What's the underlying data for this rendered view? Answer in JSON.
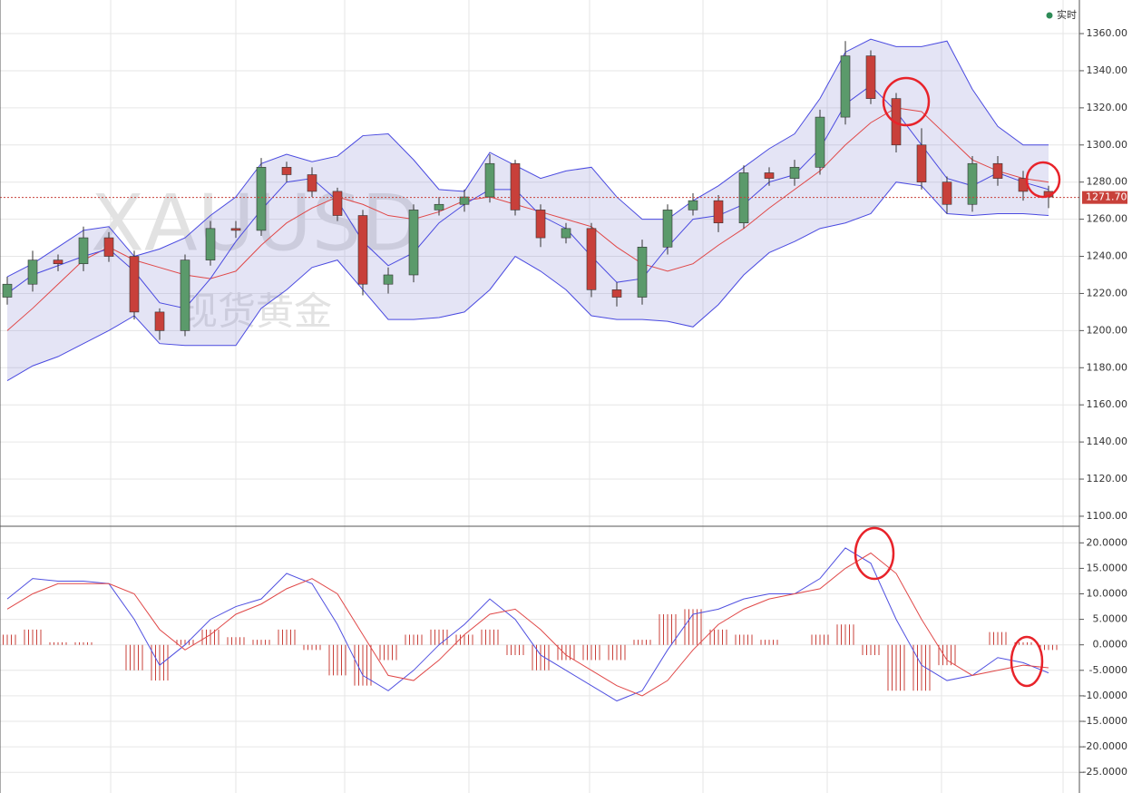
{
  "mode_label": "实时",
  "watermark": "XAUUSD",
  "watermark_sub": "现货黄金",
  "chart_data": [
    {
      "type": "candlestick",
      "ylim": [
        1094.6,
        1378.1
      ],
      "yticks": [
        {
          "value": 1100,
          "label": "1100.00"
        },
        {
          "value": 1120,
          "label": "1120.00"
        },
        {
          "value": 1140,
          "label": "1140.00"
        },
        {
          "value": 1160,
          "label": "1160.00"
        },
        {
          "value": 1180,
          "label": "1180.00"
        },
        {
          "value": 1200,
          "label": "1200.00"
        },
        {
          "value": 1220,
          "label": "1220.00"
        },
        {
          "value": 1240,
          "label": "1240.00"
        },
        {
          "value": 1260,
          "label": "1260.00"
        },
        {
          "value": 1280,
          "label": "1280.00"
        },
        {
          "value": 1300,
          "label": "1300.00"
        },
        {
          "value": 1320,
          "label": "1320.00"
        },
        {
          "value": 1340,
          "label": "1340.00"
        },
        {
          "value": 1360,
          "label": "1360.00"
        }
      ],
      "last_price": {
        "value": 1271.7,
        "label": "1271.70"
      },
      "up_color": "#5b9a6b",
      "down_color": "#c8403a",
      "open": [
        1218,
        1225,
        1238,
        1236,
        1250,
        1240,
        1210,
        1200,
        1238,
        1255,
        1254,
        1288,
        1284,
        1275,
        1262,
        1225,
        1230,
        1265,
        1268,
        1272,
        1290,
        1265,
        1250,
        1255,
        1222,
        1218,
        1245,
        1265,
        1270,
        1258,
        1285,
        1282,
        1288,
        1315,
        1348,
        1325,
        1300,
        1280,
        1268,
        1290,
        1282,
        1275
      ],
      "close": [
        1225,
        1238,
        1236,
        1250,
        1240,
        1210,
        1200,
        1238,
        1255,
        1254,
        1288,
        1284,
        1275,
        1262,
        1225,
        1230,
        1265,
        1268,
        1272,
        1290,
        1265,
        1250,
        1255,
        1222,
        1218,
        1245,
        1265,
        1270,
        1258,
        1285,
        1282,
        1288,
        1315,
        1348,
        1325,
        1300,
        1280,
        1268,
        1290,
        1282,
        1275,
        1272
      ],
      "high": [
        1229,
        1243,
        1241,
        1256,
        1253,
        1243,
        1212,
        1241,
        1259,
        1259,
        1293,
        1291,
        1288,
        1277,
        1265,
        1234,
        1268,
        1272,
        1276,
        1295,
        1292,
        1268,
        1258,
        1258,
        1226,
        1249,
        1268,
        1274,
        1273,
        1289,
        1288,
        1292,
        1319,
        1356,
        1351,
        1328,
        1309,
        1283,
        1294,
        1294,
        1286,
        1278
      ],
      "low": [
        1214,
        1221,
        1232,
        1232,
        1237,
        1206,
        1195,
        1197,
        1235,
        1250,
        1251,
        1280,
        1272,
        1259,
        1219,
        1220,
        1226,
        1262,
        1264,
        1269,
        1262,
        1245,
        1247,
        1218,
        1213,
        1214,
        1241,
        1262,
        1253,
        1255,
        1278,
        1278,
        1284,
        1311,
        1322,
        1296,
        1276,
        1263,
        1264,
        1278,
        1270,
        1266
      ],
      "series": [
        {
          "name": "upper",
          "color": "#4a4ae0",
          "values": [
            1229,
            1236,
            1245,
            1254,
            1256,
            1240,
            1244,
            1250,
            1262,
            1272,
            1290,
            1295,
            1291,
            1294,
            1305,
            1306,
            1292,
            1276,
            1275,
            1296,
            1289,
            1282,
            1286,
            1288,
            1272,
            1260,
            1260,
            1270,
            1278,
            1288,
            1298,
            1306,
            1325,
            1350,
            1357,
            1353,
            1353,
            1356,
            1330,
            1310,
            1300,
            1300
          ]
        },
        {
          "name": "middle",
          "color": "#e04848",
          "values": [
            1200,
            1212,
            1225,
            1238,
            1245,
            1238,
            1234,
            1230,
            1228,
            1232,
            1246,
            1258,
            1266,
            1272,
            1268,
            1262,
            1260,
            1264,
            1270,
            1272,
            1268,
            1264,
            1260,
            1256,
            1245,
            1236,
            1232,
            1236,
            1246,
            1255,
            1266,
            1276,
            1286,
            1300,
            1312,
            1320,
            1318,
            1305,
            1292,
            1286,
            1282,
            1280
          ]
        },
        {
          "name": "lower",
          "color": "#4a4ae0",
          "values": [
            1173,
            1181,
            1186,
            1193,
            1200,
            1208,
            1193,
            1192,
            1192,
            1192,
            1212,
            1222,
            1234,
            1238,
            1222,
            1206,
            1206,
            1207,
            1210,
            1222,
            1240,
            1232,
            1222,
            1208,
            1206,
            1206,
            1205,
            1202,
            1214,
            1230,
            1242,
            1248,
            1255,
            1258,
            1263,
            1280,
            1278,
            1263,
            1262,
            1263,
            1263,
            1262
          ]
        },
        {
          "name": "fast",
          "color": "#4a4ae0",
          "values": [
            1220,
            1230,
            1235,
            1240,
            1244,
            1232,
            1215,
            1212,
            1228,
            1248,
            1265,
            1280,
            1282,
            1270,
            1248,
            1235,
            1242,
            1258,
            1268,
            1276,
            1276,
            1262,
            1255,
            1240,
            1226,
            1228,
            1245,
            1260,
            1262,
            1268,
            1280,
            1284,
            1298,
            1322,
            1332,
            1318,
            1300,
            1282,
            1278,
            1285,
            1280,
            1276
          ]
        }
      ]
    },
    {
      "type": "macd",
      "ylim": [
        -28.7,
        22.9
      ],
      "yticks": [
        {
          "value": 20,
          "label": "20.0000"
        },
        {
          "value": 15,
          "label": "15.0000"
        },
        {
          "value": 10,
          "label": "10.0000"
        },
        {
          "value": 5,
          "label": "5.0000"
        },
        {
          "value": 0,
          "label": "0.0000"
        },
        {
          "value": -5,
          "label": "-5.0000"
        },
        {
          "value": -10,
          "label": "-10.0000"
        },
        {
          "value": -15,
          "label": "-15.0000"
        },
        {
          "value": -20,
          "label": "-20.0000"
        },
        {
          "value": -25,
          "label": "-25.0000"
        }
      ],
      "histogram_color": "#c8403a",
      "histogram": [
        2,
        3,
        0.5,
        0.5,
        0,
        -5,
        -7,
        1,
        3,
        1.5,
        1,
        3,
        -1,
        -6,
        -8,
        -3,
        2,
        3,
        2,
        3,
        -2,
        -5,
        -3,
        -3,
        -3,
        1,
        6,
        7,
        3,
        2,
        1,
        0,
        2,
        4,
        -2,
        -9,
        -9,
        -4,
        0,
        2.5,
        0.5,
        -1
      ],
      "series": [
        {
          "name": "DIF",
          "color": "#5050e0",
          "values": [
            9,
            13,
            12.5,
            12.5,
            12,
            5,
            -4,
            0,
            5,
            7.5,
            9,
            14,
            12,
            4,
            -6,
            -9,
            -5,
            0,
            4,
            9,
            5,
            -2,
            -5,
            -8,
            -11,
            -9,
            -1,
            6,
            7,
            9,
            10,
            10,
            13,
            19,
            16,
            5,
            -4,
            -7,
            -6,
            -2.5,
            -3.5,
            -5.5
          ]
        },
        {
          "name": "DEA",
          "color": "#e04848",
          "values": [
            7,
            10,
            12,
            12,
            12,
            10,
            3,
            -1,
            2,
            6,
            8,
            11,
            13,
            10,
            2,
            -6,
            -7,
            -3,
            2,
            6,
            7,
            3,
            -2,
            -5,
            -8,
            -10,
            -7,
            -1,
            4,
            7,
            9,
            10,
            11,
            15,
            18,
            14,
            5,
            -3,
            -6,
            -5,
            -4,
            -4.5
          ]
        }
      ]
    }
  ]
}
